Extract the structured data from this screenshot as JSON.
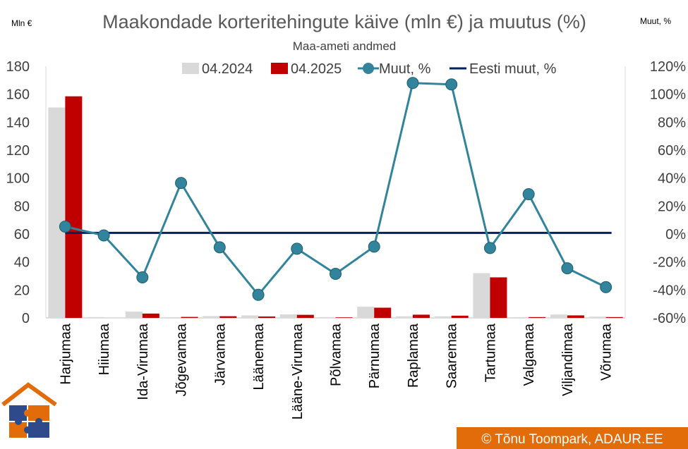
{
  "chart_data": {
    "type": "bar",
    "title": "Maakondade korteritehingute käive (mln €) ja muutus (%)",
    "subtitle": "Maa-ameti andmed",
    "ylabel_left": "Mln €",
    "ylabel_right": "Muut, %",
    "ylim_left": [
      0,
      180
    ],
    "ylim_right": [
      -60,
      120
    ],
    "yticks_left": [
      "0",
      "20",
      "40",
      "60",
      "80",
      "100",
      "120",
      "140",
      "160",
      "180"
    ],
    "yticks_right": [
      "-60%",
      "-40%",
      "-20%",
      "0%",
      "20%",
      "40%",
      "60%",
      "80%",
      "100%",
      "120%"
    ],
    "legend_position": "top",
    "categories": [
      "Harjumaa",
      "Hiiumaa",
      "Ida-Virumaa",
      "Jõgevamaa",
      "Järvamaa",
      "Läänemaa",
      "Lääne-Virumaa",
      "Põlvamaa",
      "Pärnumaa",
      "Raplamaa",
      "Saaremaa",
      "Tartumaa",
      "Valgamaa",
      "Viljandimaa",
      "Võrumaa"
    ],
    "series": [
      {
        "name": "04.2024",
        "type": "bar",
        "axis": "left",
        "color": "#d9d9d9",
        "values": [
          150.5,
          0.6,
          4.5,
          0.5,
          1.3,
          1.8,
          2.5,
          0.6,
          8.0,
          1.1,
          1.1,
          32.0,
          0.5,
          2.4,
          0.9
        ]
      },
      {
        "name": "04.2025",
        "type": "bar",
        "axis": "left",
        "color": "#c00000",
        "values": [
          158.5,
          0.0,
          3.1,
          0.7,
          1.2,
          1.0,
          2.2,
          0.4,
          7.3,
          2.3,
          1.6,
          29.0,
          0.6,
          1.8,
          0.6
        ]
      },
      {
        "name": "Muut, %",
        "type": "line",
        "axis": "right",
        "color": "#31849b",
        "values": [
          5.3,
          -1.0,
          -31.0,
          36.5,
          -9.5,
          -43.5,
          -10.5,
          -28.5,
          -9.0,
          108.0,
          107.0,
          -10.0,
          28.5,
          -24.5,
          -38.0
        ]
      },
      {
        "name": "Eesti muut, %",
        "type": "hline",
        "axis": "right",
        "color": "#002060",
        "value": 0.8
      }
    ]
  },
  "footer": {
    "copyright": "© Tõnu Toompark, ADAUR.EE"
  }
}
